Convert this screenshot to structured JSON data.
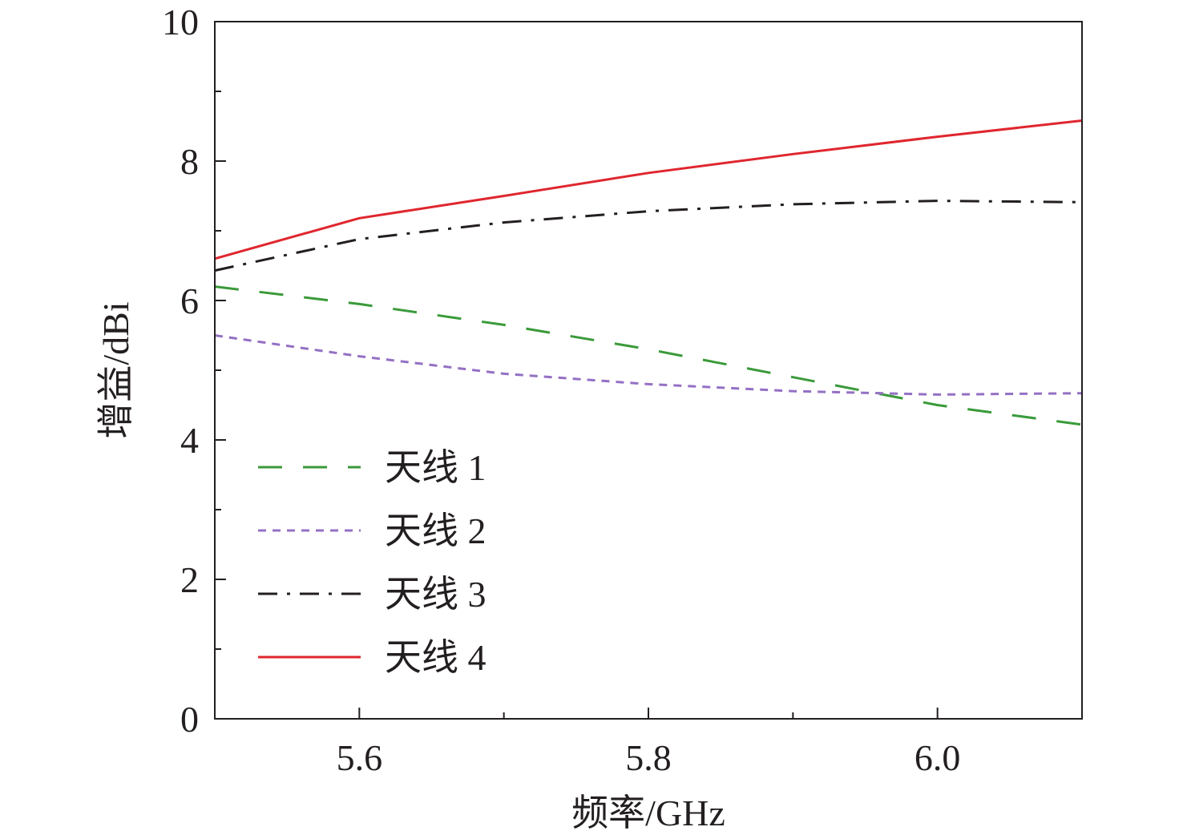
{
  "chart_data": {
    "type": "line",
    "xlabel": "频率/GHz",
    "ylabel": "增益/dBi",
    "xlim": [
      5.5,
      6.1
    ],
    "ylim": [
      0,
      10
    ],
    "xticks": [
      5.6,
      5.8,
      6.0
    ],
    "xtick_labels": [
      "5.6",
      "5.8",
      "6.0"
    ],
    "xminor_ticks": [
      5.7,
      5.9
    ],
    "yticks": [
      0,
      2,
      4,
      6,
      8,
      10
    ],
    "ytick_labels": [
      "0",
      "2",
      "4",
      "6",
      "8",
      "10"
    ],
    "yminor_ticks": [
      1,
      3,
      5,
      7,
      9
    ],
    "grid": false,
    "legend_position": "lower-left",
    "series": [
      {
        "name": "天线 1",
        "color": "#3a9a3a",
        "dash": "dashed",
        "x": [
          5.5,
          5.6,
          5.7,
          5.8,
          5.9,
          6.0,
          6.1
        ],
        "y": [
          6.2,
          5.95,
          5.65,
          5.3,
          4.9,
          4.5,
          4.22
        ]
      },
      {
        "name": "天线 2",
        "color": "#9470c4",
        "dash": "dotted",
        "x": [
          5.5,
          5.6,
          5.7,
          5.8,
          5.9,
          6.0,
          6.1
        ],
        "y": [
          5.5,
          5.2,
          4.95,
          4.8,
          4.7,
          4.65,
          4.67
        ]
      },
      {
        "name": "天线 3",
        "color": "#231f20",
        "dash": "dashdot",
        "x": [
          5.5,
          5.6,
          5.7,
          5.8,
          5.9,
          6.0,
          6.1
        ],
        "y": [
          6.43,
          6.88,
          7.12,
          7.28,
          7.38,
          7.43,
          7.41
        ]
      },
      {
        "name": "天线 4",
        "color": "#e0262e",
        "dash": "solid",
        "x": [
          5.5,
          5.6,
          5.7,
          5.8,
          5.9,
          6.0,
          6.1
        ],
        "y": [
          6.6,
          7.18,
          7.5,
          7.83,
          8.1,
          8.35,
          8.58
        ]
      }
    ]
  }
}
